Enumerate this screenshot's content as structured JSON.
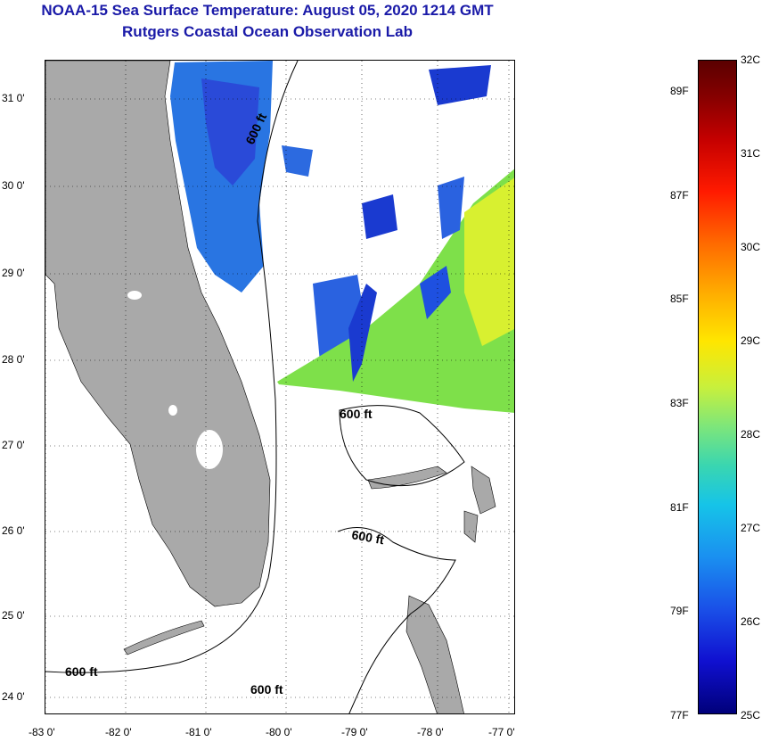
{
  "title": {
    "line1": "NOAA-15 Sea Surface Temperature:  August 05, 2020 1214 GMT",
    "line2": "Rutgers Coastal Ocean Observation Lab"
  },
  "map": {
    "lat_labels": [
      "31 0'",
      "30 0'",
      "29 0'",
      "28 0'",
      "27 0'",
      "26 0'",
      "25 0'",
      "24 0'"
    ],
    "lon_labels": [
      "-83 0'",
      "-82 0'",
      "-81 0'",
      "-80 0'",
      "-79 0'",
      "-78 0'",
      "-77 0'"
    ],
    "contour_label": "600 ft",
    "colors": {
      "land": "#a9a9a9",
      "cold": "#1a3ad0",
      "mid": "#1e78e8",
      "warm": "#7ee04a",
      "warmer": "#d8f030"
    }
  },
  "colorbar": {
    "celsius": [
      "32C",
      "31C",
      "30C",
      "29C",
      "28C",
      "27C",
      "26C",
      "25C"
    ],
    "fahrenheit": [
      "89F",
      "87F",
      "85F",
      "83F",
      "81F",
      "79F",
      "77F"
    ]
  }
}
